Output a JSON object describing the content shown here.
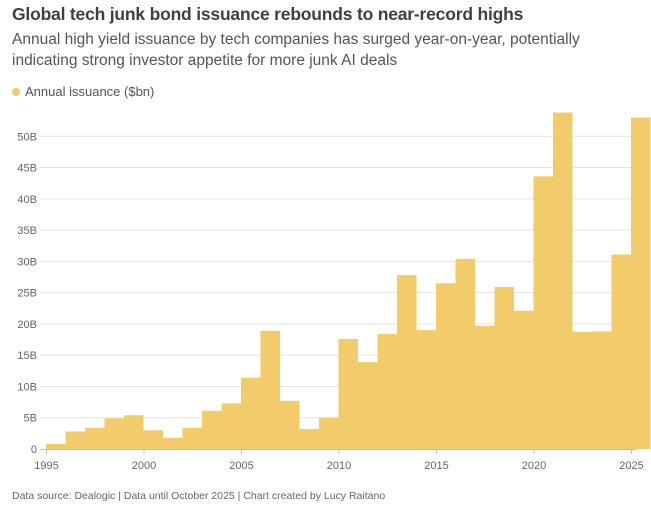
{
  "header": {
    "title": "Global tech junk bond issuance rebounds to near-record highs",
    "subtitle": "Annual high yield issuance by tech companies has surged year-on-year, potentially indicating strong investor appetite for more junk AI deals"
  },
  "legend": {
    "label": "Annual issuance ($bn)"
  },
  "footer": {
    "text": "Data source: Dealogic | Data until October 2025 | Chart created by Lucy Raitano"
  },
  "colors": {
    "bar": "#f2cc6b",
    "grid": "#e3e3e3",
    "axis": "#bdbdbd"
  },
  "chart_data": {
    "type": "bar",
    "title": "Global tech junk bond issuance rebounds to near-record highs",
    "xlabel": "",
    "ylabel": "",
    "series": [
      {
        "name": "Annual issuance ($bn)"
      }
    ],
    "categories": [
      1995,
      1996,
      1997,
      1998,
      1999,
      2000,
      2001,
      2002,
      2003,
      2004,
      2005,
      2006,
      2007,
      2008,
      2009,
      2010,
      2011,
      2012,
      2013,
      2014,
      2015,
      2016,
      2017,
      2018,
      2019,
      2020,
      2021,
      2022,
      2023,
      2024,
      2025
    ],
    "values": [
      0.8,
      2.8,
      3.4,
      4.9,
      5.4,
      3.0,
      1.8,
      3.4,
      6.1,
      7.3,
      11.4,
      18.9,
      7.7,
      3.2,
      5.0,
      17.6,
      13.9,
      18.4,
      27.8,
      19.0,
      26.5,
      30.4,
      19.7,
      25.9,
      22.1,
      43.6,
      53.8,
      18.7,
      18.8,
      31.1,
      53.0
    ],
    "ylim": [
      0,
      55
    ],
    "yticks": [
      0,
      5,
      10,
      15,
      20,
      25,
      30,
      35,
      40,
      45,
      50
    ],
    "ytick_labels": [
      "0",
      "5B",
      "10B",
      "15B",
      "20B",
      "25B",
      "30B",
      "35B",
      "40B",
      "45B",
      "50B"
    ],
    "xticks": [
      1995,
      2000,
      2005,
      2010,
      2015,
      2020,
      2025
    ],
    "xtick_labels": [
      "1995",
      "2000",
      "2005",
      "2010",
      "2015",
      "2020",
      "2025"
    ],
    "grid": true,
    "legend_position": "top-left"
  }
}
